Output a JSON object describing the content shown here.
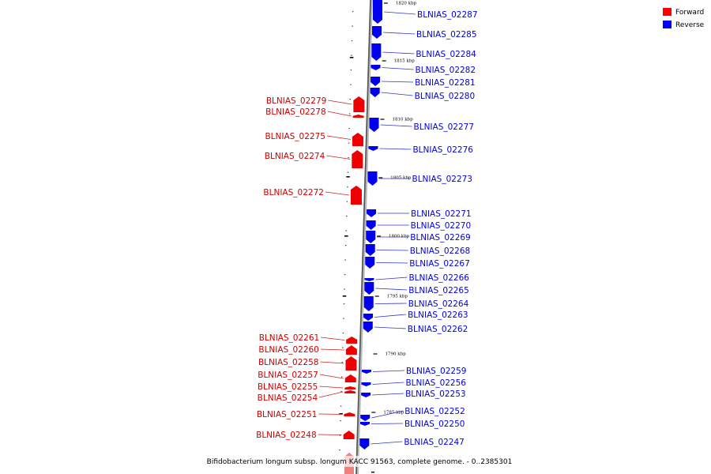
{
  "caption": "Bifidobacterium longum subsp. longum KACC 91563, complete genome. - 0..2385301",
  "legend": [
    {
      "label": "Forward",
      "color": "#ff0000"
    },
    {
      "label": "Reverse",
      "color": "#0000ff"
    }
  ],
  "ticks": [
    "1820 kbp",
    "1815 kbp",
    "1810 kbp",
    "1805 kbp",
    "1800 kbp",
    "1795 kbp",
    "1790 kbp",
    "1785 kbp"
  ],
  "reverse_genes": [
    "BLNIAS_02287",
    "BLNIAS_02285",
    "BLNIAS_02284",
    "BLNIAS_02282",
    "BLNIAS_02281",
    "BLNIAS_02280",
    "BLNIAS_02277",
    "BLNIAS_02276",
    "BLNIAS_02273",
    "BLNIAS_02271",
    "BLNIAS_02270",
    "BLNIAS_02269",
    "BLNIAS_02268",
    "BLNIAS_02267",
    "BLNIAS_02266",
    "BLNIAS_02265",
    "BLNIAS_02264",
    "BLNIAS_02263",
    "BLNIAS_02262",
    "BLNIAS_02259",
    "BLNIAS_02256",
    "BLNIAS_02253",
    "BLNIAS_02252",
    "BLNIAS_02250",
    "BLNIAS_02247"
  ],
  "forward_genes": [
    "BLNIAS_02279",
    "BLNIAS_02278",
    "BLNIAS_02275",
    "BLNIAS_02274",
    "BLNIAS_02272",
    "BLNIAS_02261",
    "BLNIAS_02260",
    "BLNIAS_02258",
    "BLNIAS_02257",
    "BLNIAS_02255",
    "BLNIAS_02254",
    "BLNIAS_02251",
    "BLNIAS_02248"
  ]
}
